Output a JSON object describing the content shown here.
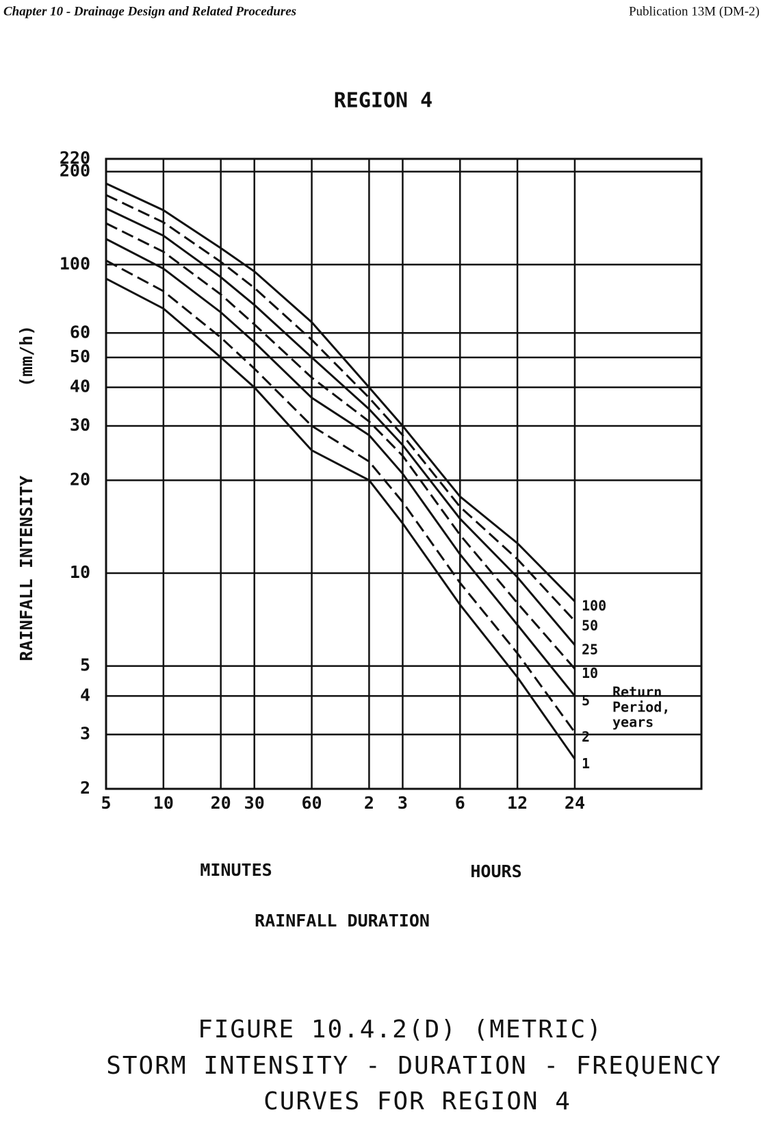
{
  "header": {
    "left": "Chapter 10 - Drainage Design and Related Procedures",
    "right": "Publication 13M (DM-2)"
  },
  "chart_data": {
    "type": "line",
    "title": "REGION 4",
    "x_label": "RAINFALL DURATION",
    "x_unit_left": "MINUTES",
    "x_unit_right": "HOURS",
    "y_label": "RAINFALL INTENSITY",
    "y_unit": "(mm/h)",
    "x": [
      5,
      10,
      20,
      30,
      60,
      120,
      180,
      360,
      720,
      1440
    ],
    "xlim": [
      5,
      6650
    ],
    "ylim": [
      2,
      220
    ],
    "log_x": true,
    "log_y": true,
    "grid": true,
    "xticks": [
      5,
      10,
      20,
      30,
      60,
      {
        "value": 120,
        "label": "2"
      },
      {
        "value": 180,
        "label": "3"
      },
      {
        "value": 360,
        "label": "6"
      },
      {
        "value": 720,
        "label": "12"
      },
      {
        "value": 1440,
        "label": "24"
      }
    ],
    "yticks": [
      2,
      3,
      4,
      5,
      10,
      20,
      30,
      40,
      50,
      60,
      100,
      200,
      220
    ],
    "legend_title": [
      "Return",
      "Period,",
      "years"
    ],
    "series": [
      {
        "name": "1",
        "color": "#111111",
        "dashed": false,
        "values": [
          90,
          72,
          50,
          40,
          25,
          20,
          14.5,
          7.9,
          4.6,
          2.5
        ]
      },
      {
        "name": "2",
        "color": "#111111",
        "dashed": true,
        "values": [
          103,
          82,
          58,
          46,
          30,
          23,
          17,
          9.3,
          5.5,
          3.05
        ]
      },
      {
        "name": "5",
        "color": "#111111",
        "dashed": false,
        "values": [
          121,
          97,
          70,
          56,
          37,
          28,
          21,
          11.5,
          6.8,
          4.0
        ]
      },
      {
        "name": "10",
        "color": "#111111",
        "dashed": true,
        "values": [
          136,
          110,
          80,
          64,
          43,
          31,
          24,
          13.3,
          8.0,
          4.9
        ]
      },
      {
        "name": "25",
        "color": "#111111",
        "dashed": false,
        "values": [
          152,
          124,
          91,
          74,
          50,
          34,
          26,
          15.0,
          9.7,
          5.85
        ]
      },
      {
        "name": "50",
        "color": "#111111",
        "dashed": true,
        "values": [
          168,
          137,
          102,
          84,
          57,
          37,
          28,
          16.4,
          11.1,
          7.0
        ]
      },
      {
        "name": "100",
        "color": "#111111",
        "dashed": false,
        "values": [
          183,
          150,
          113,
          95,
          65,
          40,
          30,
          17.7,
          12.5,
          8.1
        ]
      }
    ]
  },
  "caption": [
    "FIGURE 10.4.2(D) (METRIC)",
    "STORM INTENSITY - DURATION - FREQUENCY",
    "CURVES FOR REGION 4"
  ]
}
